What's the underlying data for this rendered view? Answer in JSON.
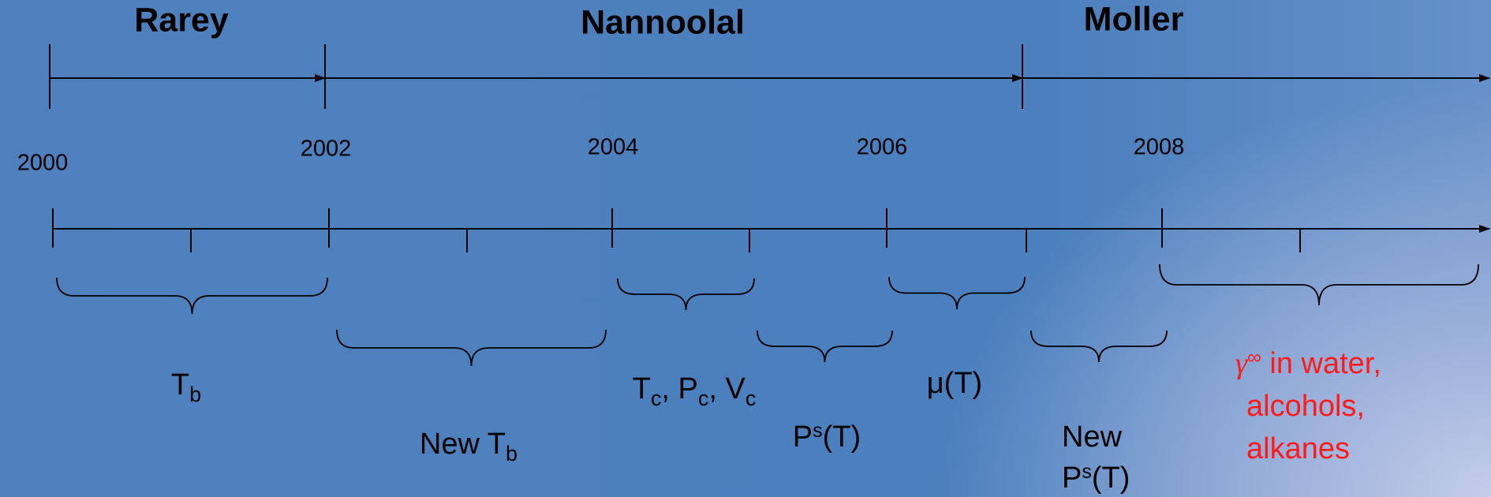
{
  "phases": [
    {
      "name": "Rarey"
    },
    {
      "name": "Nannoolal"
    },
    {
      "name": "Moller"
    }
  ],
  "years": [
    "2000",
    "2002",
    "2004",
    "2006",
    "2008"
  ],
  "properties": [
    {
      "lines": [
        [
          {
            "text": "T"
          },
          {
            "sub": "b"
          }
        ]
      ]
    },
    {
      "lines": [
        [
          {
            "text": "New T"
          },
          {
            "sub": "b"
          }
        ]
      ]
    },
    {
      "lines": [
        [
          {
            "text": "T"
          },
          {
            "sub": "c"
          },
          {
            "text": ", P"
          },
          {
            "sub": "c"
          },
          {
            "text": ", V"
          },
          {
            "sub": "c"
          }
        ]
      ]
    },
    {
      "lines": [
        [
          {
            "text": "P"
          },
          {
            "sup": "s"
          },
          {
            "text": "(T)"
          }
        ]
      ]
    },
    {
      "lines": [
        [
          {
            "text": "μ(T)"
          }
        ]
      ]
    },
    {
      "lines": [
        [
          {
            "text": "New"
          }
        ],
        [
          {
            "text": "P"
          },
          {
            "sup": "s"
          },
          {
            "text": "(T)"
          }
        ]
      ]
    },
    {
      "color": "#ff1a1a",
      "lines": [
        [
          {
            "sym": "γ"
          },
          {
            "sup": "∞"
          },
          {
            "text": "  in water,"
          }
        ],
        [
          {
            "text": "alcohols,"
          }
        ],
        [
          {
            "text": "alkanes"
          }
        ]
      ]
    }
  ]
}
